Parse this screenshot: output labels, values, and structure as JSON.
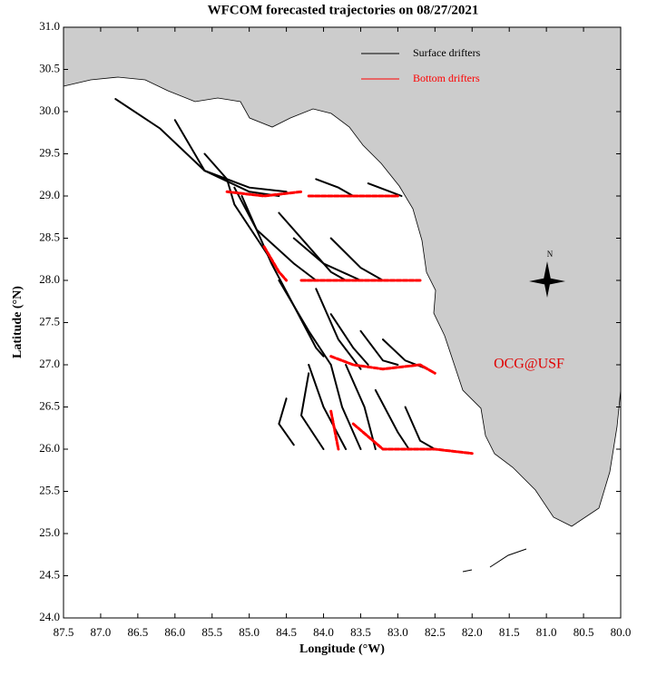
{
  "chart_data": {
    "type": "trajectory",
    "title": "WFCOM forecasted trajectories on 08/27/2021",
    "xlabel": "Longitude (°W)",
    "ylabel": "Latitude (°N)",
    "xlim": [
      87.5,
      80.0
    ],
    "xticks": [
      87.5,
      {
        "value": 87,
        "label": "87.0"
      },
      86.5,
      {
        "value": 86,
        "label": "86.0"
      },
      85.5,
      {
        "value": 85,
        "label": "85.0"
      },
      84.5,
      {
        "value": 84,
        "label": "84.0"
      },
      83.5,
      {
        "value": 83,
        "label": "83.0"
      },
      82.5,
      {
        "value": 82,
        "label": "82.0"
      },
      81.5,
      {
        "value": 81,
        "label": "81.0"
      },
      80.5,
      {
        "value": 80,
        "label": "80.0"
      }
    ],
    "ylim": [
      24.0,
      31.0
    ],
    "yticks": [
      {
        "value": 24,
        "label": "24.0"
      },
      24.5,
      {
        "value": 25,
        "label": "25.0"
      },
      25.5,
      {
        "value": 26,
        "label": "26.0"
      },
      26.5,
      {
        "value": 27,
        "label": "27.0"
      },
      27.5,
      {
        "value": 28,
        "label": "28.0"
      },
      28.5,
      {
        "value": 29,
        "label": "29.0"
      },
      29.5,
      {
        "value": 30,
        "label": "30.0"
      },
      30.5,
      {
        "value": 31,
        "label": "31.0"
      }
    ],
    "annotations": [
      "OCG@USF",
      "N"
    ],
    "series": [
      {
        "name": "Surface drifters",
        "color": "#000000",
        "tracks": [
          {
            "x": [
              86.8,
              86.2,
              85.6,
              85.0,
              84.5
            ],
            "y": [
              30.15,
              29.8,
              29.3,
              29.1,
              29.05
            ]
          },
          {
            "x": [
              86.0,
              85.6,
              85.0,
              84.6
            ],
            "y": [
              29.9,
              29.3,
              29.05,
              29.0
            ]
          },
          {
            "x": [
              85.6,
              85.3,
              85.2,
              84.9,
              84.6
            ],
            "y": [
              29.5,
              29.2,
              28.9,
              28.5,
              28.1
            ]
          },
          {
            "x": [
              85.2,
              84.9,
              84.4,
              84.1
            ],
            "y": [
              29.1,
              28.6,
              28.2,
              28.0
            ]
          },
          {
            "x": [
              84.6,
              84.2,
              83.9,
              83.7
            ],
            "y": [
              28.8,
              28.4,
              28.1,
              28.0
            ]
          },
          {
            "x": [
              84.4,
              84.0,
              83.5
            ],
            "y": [
              28.5,
              28.2,
              28.0
            ]
          },
          {
            "x": [
              83.9,
              83.5,
              83.2
            ],
            "y": [
              28.5,
              28.15,
              28.0
            ]
          },
          {
            "x": [
              85.1,
              84.7,
              84.4,
              84.1,
              84.0
            ],
            "y": [
              29.0,
              28.2,
              27.7,
              27.2,
              27.1
            ]
          },
          {
            "x": [
              84.6,
              84.2,
              83.9
            ],
            "y": [
              28.0,
              27.4,
              27.0
            ]
          },
          {
            "x": [
              84.1,
              83.8,
              83.5
            ],
            "y": [
              27.9,
              27.3,
              26.95
            ]
          },
          {
            "x": [
              83.9,
              83.6,
              83.4
            ],
            "y": [
              27.6,
              27.2,
              27.0
            ]
          },
          {
            "x": [
              83.5,
              83.2,
              83.0
            ],
            "y": [
              27.4,
              27.05,
              27.0
            ]
          },
          {
            "x": [
              83.2,
              82.9,
              82.6
            ],
            "y": [
              27.3,
              27.05,
              26.95
            ]
          },
          {
            "x": [
              84.2,
              84.0,
              83.7
            ],
            "y": [
              27.0,
              26.5,
              26.0
            ]
          },
          {
            "x": [
              83.9,
              83.75,
              83.5
            ],
            "y": [
              27.0,
              26.5,
              26.0
            ]
          },
          {
            "x": [
              83.7,
              83.45,
              83.3
            ],
            "y": [
              27.0,
              26.5,
              26.0
            ]
          },
          {
            "x": [
              84.5,
              84.6,
              84.4
            ],
            "y": [
              26.6,
              26.3,
              26.05
            ]
          },
          {
            "x": [
              84.2,
              84.3,
              84.0
            ],
            "y": [
              26.9,
              26.4,
              26.0
            ]
          },
          {
            "x": [
              83.3,
              83.0,
              82.85
            ],
            "y": [
              26.7,
              26.2,
              26.0
            ]
          },
          {
            "x": [
              82.9,
              82.7,
              82.5
            ],
            "y": [
              26.5,
              26.1,
              26.0
            ]
          },
          {
            "x": [
              83.4,
              83.1,
              82.95
            ],
            "y": [
              29.15,
              29.05,
              29.0
            ]
          },
          {
            "x": [
              84.1,
              83.8,
              83.6
            ],
            "y": [
              29.2,
              29.1,
              29.0
            ]
          }
        ]
      },
      {
        "name": "Bottom drifters",
        "color": "#ff0000",
        "tracks": [
          {
            "x": [
              85.3,
              84.8,
              84.3
            ],
            "y": [
              29.05,
              29.0,
              29.05
            ]
          },
          {
            "x": [
              84.2,
              83.6,
              83.0
            ],
            "y": [
              29.0,
              29.0,
              29.0
            ]
          },
          {
            "x": [
              84.8,
              84.6,
              84.5
            ],
            "y": [
              28.4,
              28.1,
              28.0
            ]
          },
          {
            "x": [
              84.3,
              83.7,
              83.2,
              82.7
            ],
            "y": [
              28.0,
              28.0,
              28.0,
              28.0
            ]
          },
          {
            "x": [
              83.9,
              83.6,
              83.2,
              82.7,
              82.5
            ],
            "y": [
              27.1,
              27.0,
              26.95,
              27.0,
              26.9
            ]
          },
          {
            "x": [
              83.9,
              83.8
            ],
            "y": [
              26.45,
              26.0
            ]
          },
          {
            "x": [
              83.6,
              83.2,
              82.5,
              82.0
            ],
            "y": [
              26.3,
              26.0,
              26.0,
              25.95
            ]
          }
        ]
      }
    ]
  }
}
